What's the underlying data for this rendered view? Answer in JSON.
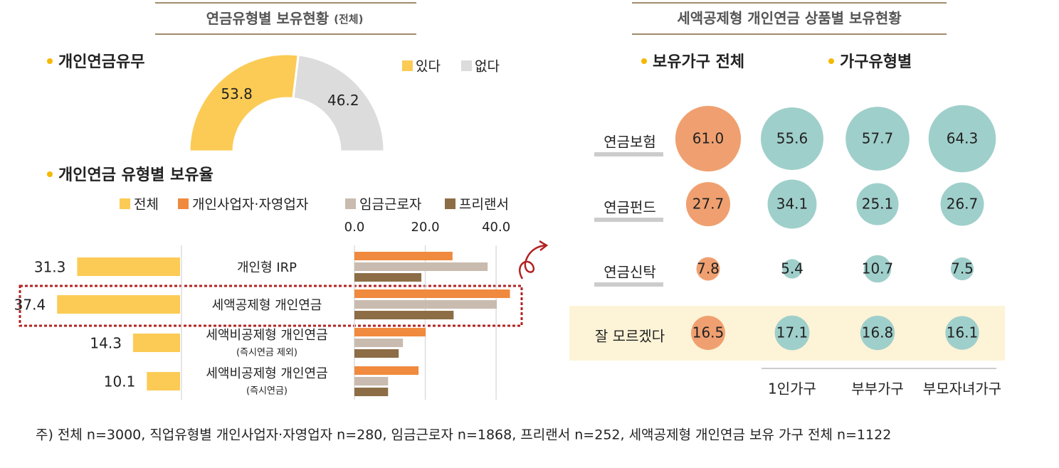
{
  "headers": {
    "left": {
      "title": "연금유형별 보유현황",
      "suffix": "(전체)"
    },
    "right": {
      "title": "세액공제형 개인연금 상품별 보유현황"
    }
  },
  "chart_data": [
    {
      "type": "pie",
      "title": "개인연금유무",
      "half": true,
      "legend": "top-right",
      "categories": [
        "있다",
        "없다"
      ],
      "values": [
        53.8,
        46.2
      ],
      "colors": [
        "#fbcb55",
        "#dcdcdc"
      ]
    },
    {
      "type": "bar",
      "title": "개인연금 유형별 보유율",
      "orientation": "horizontal",
      "categories": [
        "개인형 IRP",
        "세액공제형 개인연금",
        "세액비공제형 개인연금",
        "세액비공제형 개인연금"
      ],
      "category_notes": [
        null,
        null,
        "(즉시연금 제외)",
        "(즉시연금)"
      ],
      "series": [
        {
          "name": "전체",
          "color": "#fbcb55",
          "axis": "x2",
          "values": [
            31.3,
            37.4,
            14.3,
            10.1
          ]
        },
        {
          "name": "개인사업자·자영업자",
          "color": "#f08a3e",
          "values": [
            27.7,
            43.9,
            20.1,
            18.1
          ]
        },
        {
          "name": "임금근로자",
          "color": "#c9bbaf",
          "values": [
            37.6,
            40.2,
            13.7,
            9.5
          ]
        },
        {
          "name": "프리랜서",
          "color": "#8c6d46",
          "values": [
            18.9,
            28.0,
            12.5,
            9.5
          ]
        }
      ],
      "xlim": [
        0,
        45
      ],
      "xticks": [
        {
          "value": 0,
          "label": "0.0"
        },
        {
          "value": 20,
          "label": "20.0"
        },
        {
          "value": 40,
          "label": "40.0"
        }
      ],
      "x2lim": [
        0,
        50
      ],
      "grid": true,
      "highlight": 1
    },
    {
      "type": "bubble",
      "section_labels": [
        "보유가구 전체",
        "가구유형별"
      ],
      "categories": [
        "연금보험",
        "연금펀드",
        "연금신탁",
        "잘 모르겠다"
      ],
      "highlight": 3,
      "series": [
        {
          "name": null,
          "color": "#f0a070",
          "values": [
            61.0,
            27.7,
            7.8,
            16.5
          ],
          "value_labels": [
            "61.0",
            "27.7",
            "7.8",
            "16.5"
          ]
        },
        {
          "name": "1인가구",
          "color": "#9fcfcb",
          "values": [
            55.6,
            34.1,
            5.4,
            17.1
          ]
        },
        {
          "name": "부부가구",
          "color": "#9fcfcb",
          "values": [
            57.7,
            25.1,
            10.7,
            16.8
          ]
        },
        {
          "name": "부모자녀가구",
          "color": "#9fcfcb",
          "values": [
            64.3,
            26.7,
            7.5,
            16.1
          ]
        }
      ]
    }
  ],
  "note": "주) 전체 n=3000, 직업유형별 개인사업자·자영업자 n=280, 임금근로자 n=1868, 프리랜서 n=252, 세액공제형 개인연금 보유 가구 전체 n=1122"
}
